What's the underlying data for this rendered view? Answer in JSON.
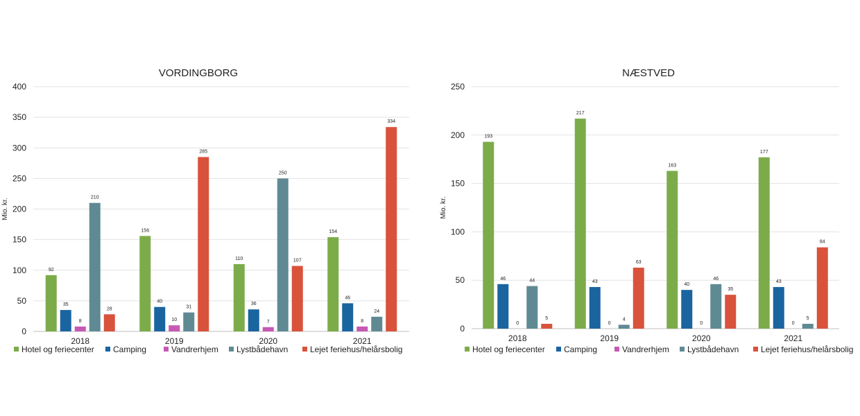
{
  "colors": {
    "Hotel og feriecenter": "#7cac4a",
    "Camping": "#1a64a0",
    "Vandrerhjem": "#c659b4",
    "Lystbådehavn": "#5f8a94",
    "Lejet feriehus/helårsbolig": "#d9523c",
    "grid": "#e2e2e2"
  },
  "chart_data": [
    {
      "type": "bar",
      "title": "VORDINGBORG",
      "ylabel": "Mio. kr.",
      "xlabel": "",
      "ylim": [
        0,
        400
      ],
      "yticks": [
        0,
        50,
        100,
        150,
        200,
        250,
        300,
        350,
        400
      ],
      "categories": [
        "2018",
        "2019",
        "2020",
        "2021"
      ],
      "grid": true,
      "legend": "bottom",
      "series": [
        {
          "name": "Hotel og feriecenter",
          "values": [
            92,
            156,
            110,
            154
          ]
        },
        {
          "name": "Camping",
          "values": [
            35,
            40,
            36,
            46
          ]
        },
        {
          "name": "Vandrerhjem",
          "values": [
            8,
            10,
            7,
            8
          ]
        },
        {
          "name": "Lystbådehavn",
          "values": [
            210,
            31,
            250,
            24
          ]
        },
        {
          "name": "Lejet feriehus/helårsbolig",
          "values": [
            28,
            285,
            107,
            334
          ]
        }
      ]
    },
    {
      "type": "bar",
      "title": "NÆSTVED",
      "ylabel": "Mio. kr.",
      "xlabel": "",
      "ylim": [
        0,
        250
      ],
      "yticks": [
        0,
        50,
        100,
        150,
        200,
        250
      ],
      "categories": [
        "2018",
        "2019",
        "2020",
        "2021"
      ],
      "grid": true,
      "legend": "bottom",
      "series": [
        {
          "name": "Hotel og feriecenter",
          "values": [
            193,
            217,
            163,
            177
          ]
        },
        {
          "name": "Camping",
          "values": [
            46,
            43,
            40,
            43
          ]
        },
        {
          "name": "Vandrerhjem",
          "values": [
            0,
            0,
            0,
            0
          ]
        },
        {
          "name": "Lystbådehavn",
          "values": [
            44,
            4,
            46,
            5
          ]
        },
        {
          "name": "Lejet feriehus/helårsbolig",
          "values": [
            5,
            63,
            35,
            84
          ]
        }
      ]
    }
  ]
}
